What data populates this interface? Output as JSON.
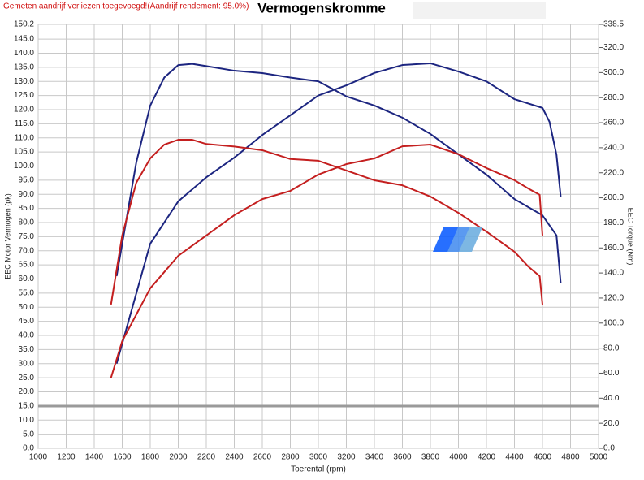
{
  "chart_data": {
    "type": "line",
    "title": "Vermogenskromme",
    "note": "Gemeten aandrijf verliezen toegevoegd!(Aandrijf rendement: 95.0%)",
    "xlabel": "Toerental (rpm)",
    "ylabel": "EEC Motor Vermogen (pk)",
    "y2label": "EEC Torque (Nm)",
    "xlim": [
      1000,
      5000
    ],
    "xticks": [
      1000,
      1200,
      1400,
      1600,
      1800,
      2000,
      2200,
      2400,
      2600,
      2800,
      3000,
      3200,
      3400,
      3600,
      3800,
      4000,
      4200,
      4400,
      4600,
      4800,
      5000
    ],
    "ylim": [
      0,
      150.2
    ],
    "yticks": [
      {
        "value": 0,
        "label": "0.0"
      },
      {
        "value": 5,
        "label": "5.0"
      },
      {
        "value": 10,
        "label": "10.0"
      },
      {
        "value": 15,
        "label": "15.0"
      },
      {
        "value": 20,
        "label": "20.0"
      },
      {
        "value": 25,
        "label": "25.0"
      },
      {
        "value": 30,
        "label": "30.0"
      },
      {
        "value": 35,
        "label": "35.0"
      },
      {
        "value": 40,
        "label": "40.0"
      },
      {
        "value": 45,
        "label": "45.0"
      },
      {
        "value": 50,
        "label": "50.0"
      },
      {
        "value": 55,
        "label": "55.0"
      },
      {
        "value": 60,
        "label": "60.0"
      },
      {
        "value": 65,
        "label": "65.0"
      },
      {
        "value": 70,
        "label": "70.0"
      },
      {
        "value": 75,
        "label": "75.0"
      },
      {
        "value": 80,
        "label": "80.0"
      },
      {
        "value": 85,
        "label": "85.0"
      },
      {
        "value": 90,
        "label": "90.0"
      },
      {
        "value": 95,
        "label": "95.0"
      },
      {
        "value": 100,
        "label": "100.0"
      },
      {
        "value": 105,
        "label": "105.0"
      },
      {
        "value": 110,
        "label": "110.0"
      },
      {
        "value": 115,
        "label": "115.0"
      },
      {
        "value": 120,
        "label": "120.0"
      },
      {
        "value": 125,
        "label": "125.0"
      },
      {
        "value": 130,
        "label": "130.0"
      },
      {
        "value": 135,
        "label": "135.0"
      },
      {
        "value": 140,
        "label": "140.0"
      },
      {
        "value": 145,
        "label": "145.0"
      },
      {
        "value": 150.2,
        "label": "150.2"
      }
    ],
    "y2lim": [
      0,
      338.5
    ],
    "y2ticks": [
      {
        "value": 0,
        "label": "0.0"
      },
      {
        "value": 20,
        "label": "20.0"
      },
      {
        "value": 40,
        "label": "40.0"
      },
      {
        "value": 60,
        "label": "60.0"
      },
      {
        "value": 80,
        "label": "80.0"
      },
      {
        "value": 100,
        "label": "100.0"
      },
      {
        "value": 120,
        "label": "120.0"
      },
      {
        "value": 140,
        "label": "140.0"
      },
      {
        "value": 160,
        "label": "160.0"
      },
      {
        "value": 180,
        "label": "180.0"
      },
      {
        "value": 200,
        "label": "200.0"
      },
      {
        "value": 220,
        "label": "220.0"
      },
      {
        "value": 240,
        "label": "240.0"
      },
      {
        "value": 260,
        "label": "260.0"
      },
      {
        "value": 280,
        "label": "280.0"
      },
      {
        "value": 300,
        "label": "300.0"
      },
      {
        "value": 320,
        "label": "320.0"
      },
      {
        "value": 338.5,
        "label": "338.5"
      }
    ],
    "grid": true,
    "series": [
      {
        "color": "#1c2580",
        "axis": "y",
        "x": [
          1560,
          1800,
          2000,
          2200,
          2400,
          2600,
          2800,
          3000,
          3200,
          3400,
          3600,
          3800,
          4000,
          4200,
          4400,
          4600,
          4650,
          4700,
          4730
        ],
        "values": [
          30,
          72.5,
          87.5,
          96,
          103,
          111,
          118,
          125,
          128.6,
          133,
          135.8,
          136.4,
          133.5,
          130,
          123.7,
          120.6,
          115.7,
          104,
          89.2
        ]
      },
      {
        "color": "#1c2580",
        "axis": "y2",
        "x": [
          1560,
          1700,
          1800,
          1900,
          2000,
          2100,
          2400,
          2600,
          2800,
          3000,
          3200,
          3400,
          3600,
          3800,
          4000,
          4200,
          4400,
          4600,
          4700,
          4730
        ],
        "values": [
          137.5,
          228,
          273.7,
          296,
          306,
          307,
          301.5,
          299.6,
          296,
          293,
          281,
          273.7,
          264,
          251,
          234.7,
          218.5,
          199,
          186,
          170,
          132
        ]
      },
      {
        "color": "#c41f1f",
        "axis": "y",
        "x": [
          1520,
          1600,
          1800,
          2000,
          2200,
          2400,
          2600,
          2800,
          3000,
          3200,
          3400,
          3600,
          3800,
          4000,
          4200,
          4400,
          4500,
          4580,
          4600
        ],
        "values": [
          25,
          38,
          56.7,
          68.2,
          75.4,
          82.6,
          88.3,
          91.2,
          97,
          100.7,
          102.7,
          107,
          107.6,
          104.2,
          99.3,
          95,
          92,
          89.8,
          75.4
        ]
      },
      {
        "color": "#c41f1f",
        "axis": "y2",
        "x": [
          1520,
          1600,
          1700,
          1800,
          1900,
          2000,
          2100,
          2200,
          2400,
          2600,
          2800,
          3000,
          3200,
          3400,
          3600,
          3800,
          4000,
          4200,
          4400,
          4500,
          4580,
          4600
        ],
        "values": [
          114.8,
          170,
          212,
          231.5,
          242.5,
          246.4,
          246.4,
          243,
          241,
          238,
          231,
          229.6,
          221.8,
          214,
          210,
          201,
          188,
          173,
          157,
          145,
          137.5,
          114.8
        ]
      }
    ]
  }
}
